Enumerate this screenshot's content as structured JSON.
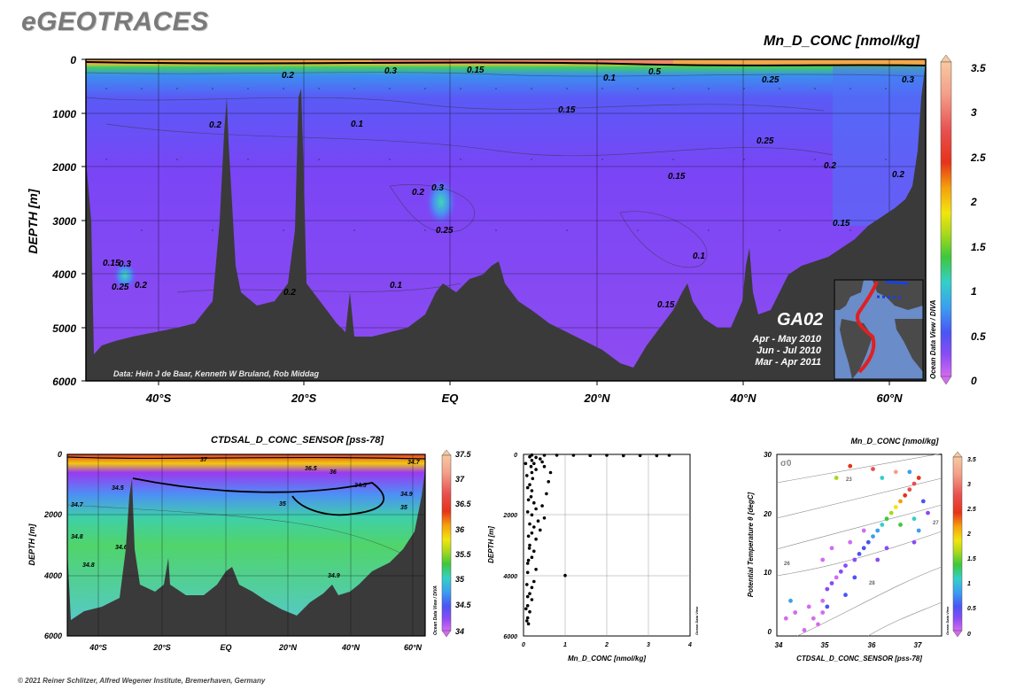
{
  "header": {
    "logo": "eGEOTRACES",
    "copyright": "© 2021 Reiner Schlitzer, Alfred Wegener Institute, Bremerhaven, Germany"
  },
  "chart_data": [
    {
      "type": "heatmap",
      "title": "Mn_D_CONC [nmol/kg]",
      "ylabel": "DEPTH [m]",
      "ylim": [
        6000,
        0
      ],
      "yticks": [
        "0",
        "1000",
        "2000",
        "3000",
        "4000",
        "5000",
        "6000"
      ],
      "xticks": [
        "40°S",
        "20°S",
        "EQ",
        "20°N",
        "40°N",
        "60°N"
      ],
      "colorbar": {
        "ticks": [
          "3.5",
          "3",
          "2.5",
          "2",
          "1.5",
          "1",
          "0.5",
          "0"
        ],
        "range": [
          0,
          3.5
        ]
      },
      "contour_labels": [
        "0.2",
        "0.3",
        "0.15",
        "0.1",
        "0.5",
        "0.25",
        "0.3",
        "0.2",
        "0.1",
        "0.15",
        "0.25",
        "0.2",
        "0.2",
        "0.3",
        "0.25",
        "0.15",
        "0.15",
        "0.2",
        "0.15",
        "0.3",
        "0.25",
        "0.2",
        "0.2",
        "0.1",
        "0.1",
        "0.15"
      ],
      "data_credit": "Data: Hein J de Baar, Kenneth W Bruland, Rob Middag",
      "inset": {
        "section": "GA02",
        "periods": [
          "Apr - May 2010",
          "Jun - Jul 2010",
          "Mar - Apr 2011"
        ]
      },
      "watermark": "Ocean Data View / DIVA"
    },
    {
      "type": "heatmap",
      "title": "CTDSAL_D_CONC_SENSOR [pss-78]",
      "ylabel": "DEPTH [m]",
      "yticks": [
        "0",
        "2000",
        "4000",
        "6000"
      ],
      "xticks": [
        "40°S",
        "20°S",
        "EQ",
        "20°N",
        "40°N",
        "60°N"
      ],
      "colorbar": {
        "ticks": [
          "37.5",
          "37",
          "36.5",
          "36",
          "35.5",
          "35",
          "34.5",
          "34"
        ],
        "range": [
          34,
          37.5
        ]
      },
      "contour_labels": [
        "34.5",
        "37",
        "36.5",
        "36",
        "34.7",
        "35",
        "34.5",
        "34.7",
        "34.8",
        "34.9",
        "34.9",
        "34.8",
        "35",
        "34.6"
      ],
      "watermark": "Ocean Data View / DIVA"
    },
    {
      "type": "scatter",
      "xlabel": "Mn_D_CONC [nmol/kg]",
      "ylabel": "DEPTH [m]",
      "xlim": [
        0,
        4
      ],
      "ylim": [
        6000,
        0
      ],
      "xticks": [
        "0",
        "1",
        "2",
        "3",
        "4"
      ],
      "yticks": [
        "0",
        "2000",
        "4000",
        "6000"
      ],
      "points": [
        [
          0.2,
          20
        ],
        [
          0.5,
          30
        ],
        [
          0.8,
          25
        ],
        [
          1.2,
          30
        ],
        [
          1.6,
          35
        ],
        [
          2.0,
          30
        ],
        [
          2.4,
          40
        ],
        [
          2.8,
          35
        ],
        [
          3.2,
          40
        ],
        [
          3.5,
          30
        ],
        [
          0.15,
          80
        ],
        [
          0.3,
          100
        ],
        [
          0.4,
          150
        ],
        [
          0.2,
          200
        ],
        [
          0.25,
          300
        ],
        [
          0.18,
          400
        ],
        [
          0.3,
          500
        ],
        [
          0.2,
          600
        ],
        [
          0.22,
          800
        ],
        [
          0.15,
          1000
        ],
        [
          0.2,
          1200
        ],
        [
          0.18,
          1400
        ],
        [
          0.25,
          1600
        ],
        [
          0.3,
          1800
        ],
        [
          0.2,
          2000
        ],
        [
          0.35,
          2200
        ],
        [
          0.25,
          2400
        ],
        [
          0.2,
          2600
        ],
        [
          0.3,
          2800
        ],
        [
          0.15,
          3000
        ],
        [
          0.25,
          3200
        ],
        [
          0.2,
          3400
        ],
        [
          0.1,
          3600
        ],
        [
          0.3,
          3800
        ],
        [
          1.0,
          4000
        ],
        [
          0.25,
          4200
        ],
        [
          0.2,
          4400
        ],
        [
          0.15,
          4600
        ],
        [
          0.2,
          4800
        ],
        [
          0.1,
          5000
        ],
        [
          0.15,
          5200
        ],
        [
          0.1,
          5400
        ],
        [
          0.12,
          5600
        ],
        [
          0.05,
          300
        ],
        [
          0.08,
          700
        ],
        [
          0.1,
          1100
        ],
        [
          0.12,
          1500
        ],
        [
          0.1,
          1900
        ],
        [
          0.15,
          2300
        ],
        [
          0.12,
          2700
        ],
        [
          0.14,
          3100
        ],
        [
          0.12,
          3500
        ],
        [
          0.1,
          3900
        ],
        [
          0.08,
          4300
        ],
        [
          0.1,
          4700
        ],
        [
          0.06,
          5100
        ],
        [
          0.08,
          5500
        ],
        [
          0.45,
          1700
        ],
        [
          0.5,
          2100
        ],
        [
          0.4,
          2500
        ],
        [
          0.55,
          1300
        ],
        [
          0.6,
          900
        ],
        [
          0.65,
          600
        ],
        [
          0.5,
          400
        ],
        [
          0.45,
          250
        ]
      ],
      "watermark": "Ocean Data View"
    },
    {
      "type": "scatter",
      "title": "Mn_D_CONC [nmol/kg]",
      "xlabel": "CTDSAL_D_CONC_SENSOR [pss-78]",
      "ylabel": "Potential Temperature θ [degC]",
      "xlim": [
        33.9,
        37.5
      ],
      "ylim": [
        -1,
        30
      ],
      "xticks": [
        "34",
        "35",
        "36",
        "37"
      ],
      "yticks": [
        "0",
        "10",
        "20",
        "30"
      ],
      "isopycnal_label": "σ0",
      "isopycnal_values": [
        "23",
        "26",
        "27",
        "28"
      ],
      "colorbar": {
        "ticks": [
          "3.5",
          "3",
          "2.5",
          "2",
          "1.5",
          "1",
          "0.5",
          "0"
        ],
        "range": [
          0,
          3.5
        ]
      },
      "points": [
        [
          34.1,
          2,
          0.2
        ],
        [
          34.3,
          3,
          0.15
        ],
        [
          34.6,
          4,
          0.2
        ],
        [
          34.7,
          2,
          0.1
        ],
        [
          34.9,
          3,
          0.2
        ],
        [
          34.9,
          5,
          0.15
        ],
        [
          35.0,
          7,
          0.3
        ],
        [
          35.1,
          8,
          0.25
        ],
        [
          35.2,
          9,
          0.2
        ],
        [
          35.3,
          10,
          0.35
        ],
        [
          35.4,
          11,
          0.3
        ],
        [
          35.6,
          12,
          0.4
        ],
        [
          35.7,
          13,
          0.5
        ],
        [
          35.8,
          14,
          0.6
        ],
        [
          35.9,
          15,
          0.5
        ],
        [
          36.0,
          16,
          0.8
        ],
        [
          36.1,
          17,
          1.0
        ],
        [
          36.2,
          18,
          1.2
        ],
        [
          36.3,
          19,
          1.5
        ],
        [
          36.4,
          20,
          1.8
        ],
        [
          36.5,
          21,
          2.0
        ],
        [
          36.6,
          22,
          2.2
        ],
        [
          36.7,
          23,
          2.5
        ],
        [
          36.8,
          24,
          2.8
        ],
        [
          36.9,
          25,
          3.0
        ],
        [
          37.0,
          26,
          2.6
        ],
        [
          36.5,
          27,
          3.2
        ],
        [
          36.0,
          27.5,
          3.0
        ],
        [
          35.5,
          28,
          2.4
        ],
        [
          35.2,
          26,
          1.6
        ],
        [
          36.2,
          26,
          1.2
        ],
        [
          36.8,
          27,
          0.8
        ],
        [
          37.1,
          22,
          0.5
        ],
        [
          37.2,
          20,
          0.3
        ],
        [
          36.9,
          15,
          0.4
        ],
        [
          35.4,
          6,
          0.6
        ],
        [
          35.0,
          4,
          0.5
        ],
        [
          34.8,
          1,
          0.2
        ],
        [
          34.5,
          0,
          0.15
        ],
        [
          34.2,
          5,
          0.9
        ],
        [
          35.6,
          9,
          0.7
        ],
        [
          36.1,
          12,
          0.3
        ],
        [
          36.3,
          14,
          0.25
        ],
        [
          35.8,
          17,
          0.2
        ],
        [
          35.5,
          15,
          0.15
        ],
        [
          34.9,
          12,
          0.1
        ],
        [
          35.1,
          14,
          0.2
        ],
        [
          36.6,
          18,
          1.4
        ],
        [
          36.9,
          19,
          1.1
        ],
        [
          37.0,
          17,
          0.9
        ]
      ],
      "watermark": "Ocean Data View"
    }
  ]
}
